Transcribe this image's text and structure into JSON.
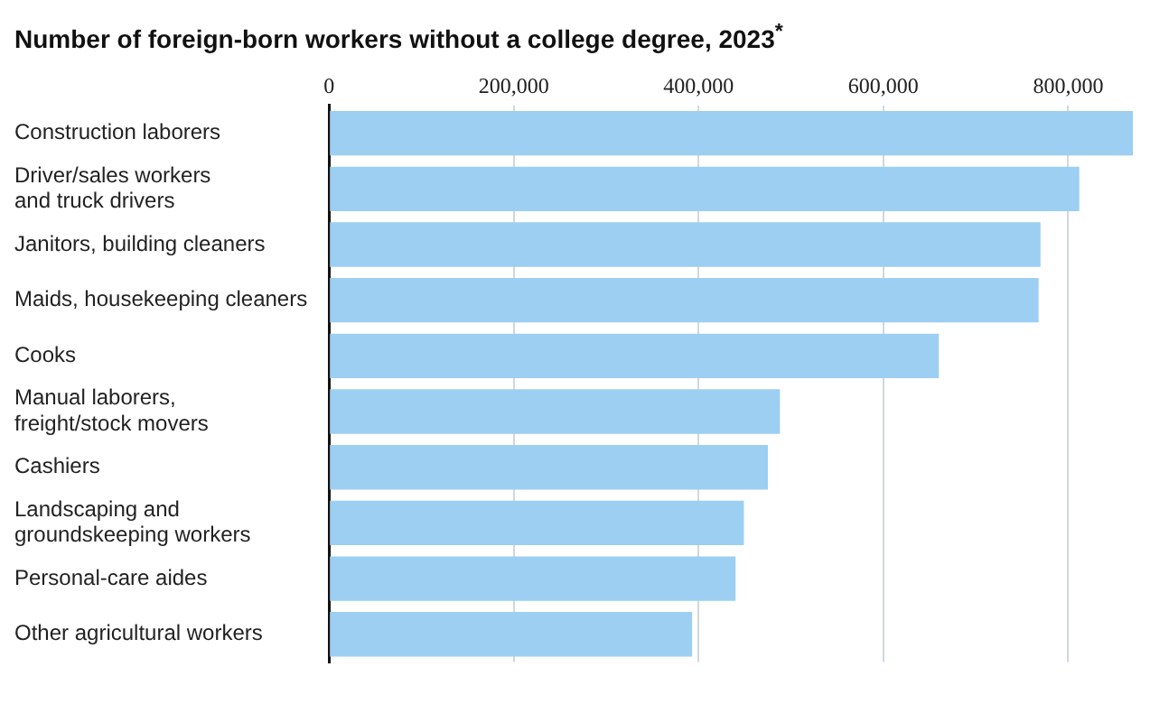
{
  "chart_data": {
    "type": "bar",
    "orientation": "horizontal",
    "title": "Number of foreign-born workers without a college degree, 2023$^{*}$",
    "categories": [
      "Construction laborers",
      "Driver/sales workers\nand truck drivers",
      "Janitors, building cleaners",
      "Maids, housekeeping cleaners",
      "Cooks",
      "Manual laborers,\nfreight/stock movers",
      "Cashiers",
      "Landscaping and\ngroundskeeping workers",
      "Personal-care aides",
      "Other agricultural workers"
    ],
    "values": [
      870000,
      812000,
      770000,
      768000,
      660000,
      488000,
      475000,
      449000,
      440000,
      393000
    ],
    "color": "#9ccff2",
    "xlim": [
      0,
      870000
    ],
    "xticks": [
      0,
      {
        "value": 200000,
        "label": "200,000"
      },
      {
        "value": 400000,
        "label": "400,000"
      },
      {
        "value": 600000,
        "label": "600,000"
      },
      {
        "value": 800000,
        "label": "800,000"
      }
    ],
    "grid": "x",
    "legend": false
  }
}
